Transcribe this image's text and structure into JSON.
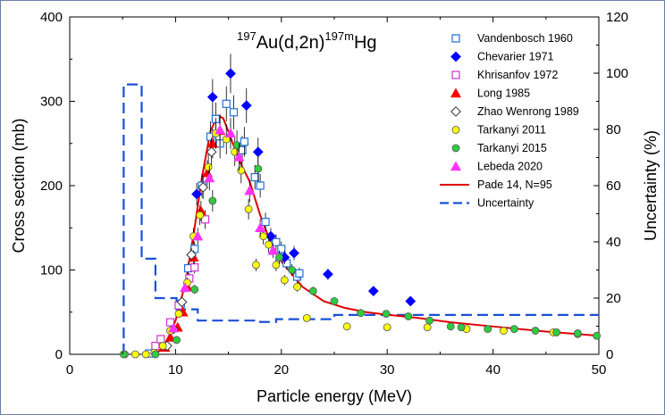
{
  "chart_data": {
    "type": "scatter",
    "title": {
      "pre_sup": "197",
      "mid": "Au(d,2n)",
      "post_sup": "197m",
      "end": "Hg"
    },
    "xlabel": "Particle energy (MeV)",
    "ylabel": "Cross section (mb)",
    "y2label": "Uncertainty (%)",
    "xlim": [
      0,
      50
    ],
    "ylim": [
      0,
      400
    ],
    "y2lim": [
      0,
      120
    ],
    "xticks": [
      "0",
      "10",
      "20",
      "30",
      "40",
      "50"
    ],
    "yticks": [
      "0",
      "100",
      "200",
      "300",
      "400"
    ],
    "y2ticks": [
      "0",
      "20",
      "40",
      "60",
      "80",
      "100",
      "120"
    ],
    "legend_position": "top-right",
    "series": [
      {
        "name": "Vandenbosch 1960",
        "marker": "square-open",
        "color": "#1e6fd9",
        "points": [
          [
            7.5,
            1
          ],
          [
            10.5,
            60
          ],
          [
            11.2,
            102
          ],
          [
            11.8,
            125
          ],
          [
            12.5,
            200
          ],
          [
            13.3,
            258
          ],
          [
            13.8,
            279
          ],
          [
            14.2,
            250
          ],
          [
            14.8,
            297
          ],
          [
            15.5,
            287
          ],
          [
            16.3,
            242
          ],
          [
            16.5,
            252
          ],
          [
            17.5,
            210
          ],
          [
            18,
            200
          ],
          [
            18.5,
            157
          ],
          [
            19.5,
            133
          ],
          [
            20,
            125
          ],
          [
            20.5,
            108
          ],
          [
            21.5,
            92
          ],
          [
            21.7,
            96
          ]
        ]
      },
      {
        "name": "Chevarier 1971",
        "marker": "diamond",
        "color": "#0000ff",
        "points": [
          [
            12,
            190
          ],
          [
            13.5,
            305
          ],
          [
            15.2,
            333
          ],
          [
            16.7,
            295
          ],
          [
            17.8,
            240
          ],
          [
            19,
            140
          ],
          [
            20.3,
            115
          ],
          [
            21.2,
            120
          ],
          [
            24.4,
            95
          ],
          [
            28.7,
            75
          ],
          [
            32.2,
            63
          ]
        ]
      },
      {
        "name": "Khrisanfov 1972",
        "marker": "square-open",
        "color": "#cc33cc",
        "points": [
          [
            8.1,
            10
          ],
          [
            8.6,
            18
          ],
          [
            9.5,
            38
          ],
          [
            10.3,
            58
          ],
          [
            11.3,
            90
          ],
          [
            11.8,
            103
          ],
          [
            12.8,
            160
          ]
        ]
      },
      {
        "name": "Long 1985",
        "marker": "triangle",
        "color": "#ff0000",
        "points": [
          [
            9,
            8
          ],
          [
            9.5,
            20
          ],
          [
            10.2,
            32
          ],
          [
            10.7,
            50
          ],
          [
            11.1,
            80
          ],
          [
            11.7,
            115
          ],
          [
            12.4,
            170
          ],
          [
            13,
            215
          ],
          [
            13.5,
            250
          ],
          [
            14.2,
            265
          ]
        ]
      },
      {
        "name": "Zhao Wenrong 1989",
        "marker": "diamond-open",
        "color": "#2a8a2a",
        "points": [
          [
            9.2,
            10
          ],
          [
            9.8,
            30
          ],
          [
            10.6,
            62
          ],
          [
            11.5,
            118
          ],
          [
            12.6,
            198
          ],
          [
            13.4,
            240
          ]
        ]
      },
      {
        "name": "Tarkanyi 2011",
        "marker": "circle",
        "color": "#ffff00",
        "points": [
          [
            5.2,
            0
          ],
          [
            6.2,
            0
          ],
          [
            7.2,
            0
          ],
          [
            8,
            2
          ],
          [
            8.8,
            10
          ],
          [
            9.5,
            28
          ],
          [
            10.3,
            48
          ],
          [
            11.1,
            85
          ],
          [
            11.7,
            140
          ],
          [
            12.3,
            165
          ],
          [
            13.1,
            222
          ],
          [
            13.8,
            262
          ],
          [
            14.8,
            255
          ],
          [
            15.6,
            240
          ],
          [
            16.2,
            218
          ],
          [
            16.9,
            172
          ],
          [
            17.6,
            106
          ],
          [
            18.3,
            140
          ],
          [
            18.8,
            130
          ],
          [
            19.5,
            106
          ],
          [
            20.3,
            88
          ],
          [
            21.5,
            80
          ],
          [
            22.4,
            43
          ],
          [
            26.2,
            33
          ],
          [
            30,
            32
          ],
          [
            33.8,
            32
          ],
          [
            37.5,
            30
          ],
          [
            41,
            28
          ],
          [
            45.7,
            26
          ],
          [
            48,
            24
          ]
        ]
      },
      {
        "name": "Tarkanyi 2015",
        "marker": "circle",
        "color": "#2ecc40",
        "points": [
          [
            5.1,
            0
          ],
          [
            8.1,
            0
          ],
          [
            10.1,
            17
          ],
          [
            11.8,
            77
          ],
          [
            13.5,
            182
          ],
          [
            15.8,
            248
          ],
          [
            17.8,
            220
          ],
          [
            19.8,
            115
          ],
          [
            21,
            100
          ],
          [
            23,
            75
          ],
          [
            25,
            63
          ],
          [
            27.5,
            49
          ],
          [
            29.9,
            48
          ],
          [
            32,
            45
          ],
          [
            34,
            40
          ],
          [
            36,
            33
          ],
          [
            37,
            32
          ],
          [
            39.5,
            30
          ],
          [
            42,
            30
          ],
          [
            44,
            28
          ],
          [
            46,
            26
          ],
          [
            48,
            25
          ],
          [
            49.8,
            22
          ]
        ]
      },
      {
        "name": "Lebeda 2020",
        "marker": "triangle",
        "color": "#ff33ff",
        "points": [
          [
            9.8,
            31
          ],
          [
            10.9,
            79
          ],
          [
            12.1,
            140
          ],
          [
            13.2,
            209
          ],
          [
            14.2,
            266
          ],
          [
            15.2,
            262
          ],
          [
            16,
            234
          ],
          [
            17,
            194
          ],
          [
            18,
            150
          ],
          [
            19.2,
            123
          ]
        ]
      }
    ],
    "fit": {
      "name": "Pade 14, N=95",
      "color": "#e00000",
      "x": [
        7.8,
        8.2,
        9,
        10,
        11,
        11.8,
        12.5,
        13.3,
        14,
        14.5,
        15,
        15.5,
        16,
        17,
        18,
        19,
        20,
        22,
        24,
        26,
        28,
        30,
        33,
        36,
        40,
        45,
        50
      ],
      "y": [
        0,
        1,
        10,
        40,
        88,
        150,
        210,
        265,
        283,
        280,
        264,
        247,
        230,
        205,
        165,
        132,
        110,
        80,
        63,
        55,
        50,
        47,
        43,
        38,
        33,
        27,
        22
      ]
    },
    "uncertainty": {
      "name": "Uncertainty",
      "color": "#1a4fd6",
      "x": [
        5.1,
        5.1,
        5.3,
        5.3,
        6.8,
        6.8,
        7.3,
        7.3,
        8.1,
        8.1,
        8.6,
        8.6,
        10.1,
        10.1,
        12.1,
        12.1,
        18,
        18,
        19.5,
        19.5,
        25,
        25,
        50
      ],
      "y": [
        0,
        96,
        96,
        96,
        96,
        34,
        34,
        34,
        34,
        20,
        20,
        20,
        20,
        16,
        16,
        12,
        12,
        11.5,
        11.5,
        12.5,
        12.5,
        14,
        14
      ]
    }
  }
}
